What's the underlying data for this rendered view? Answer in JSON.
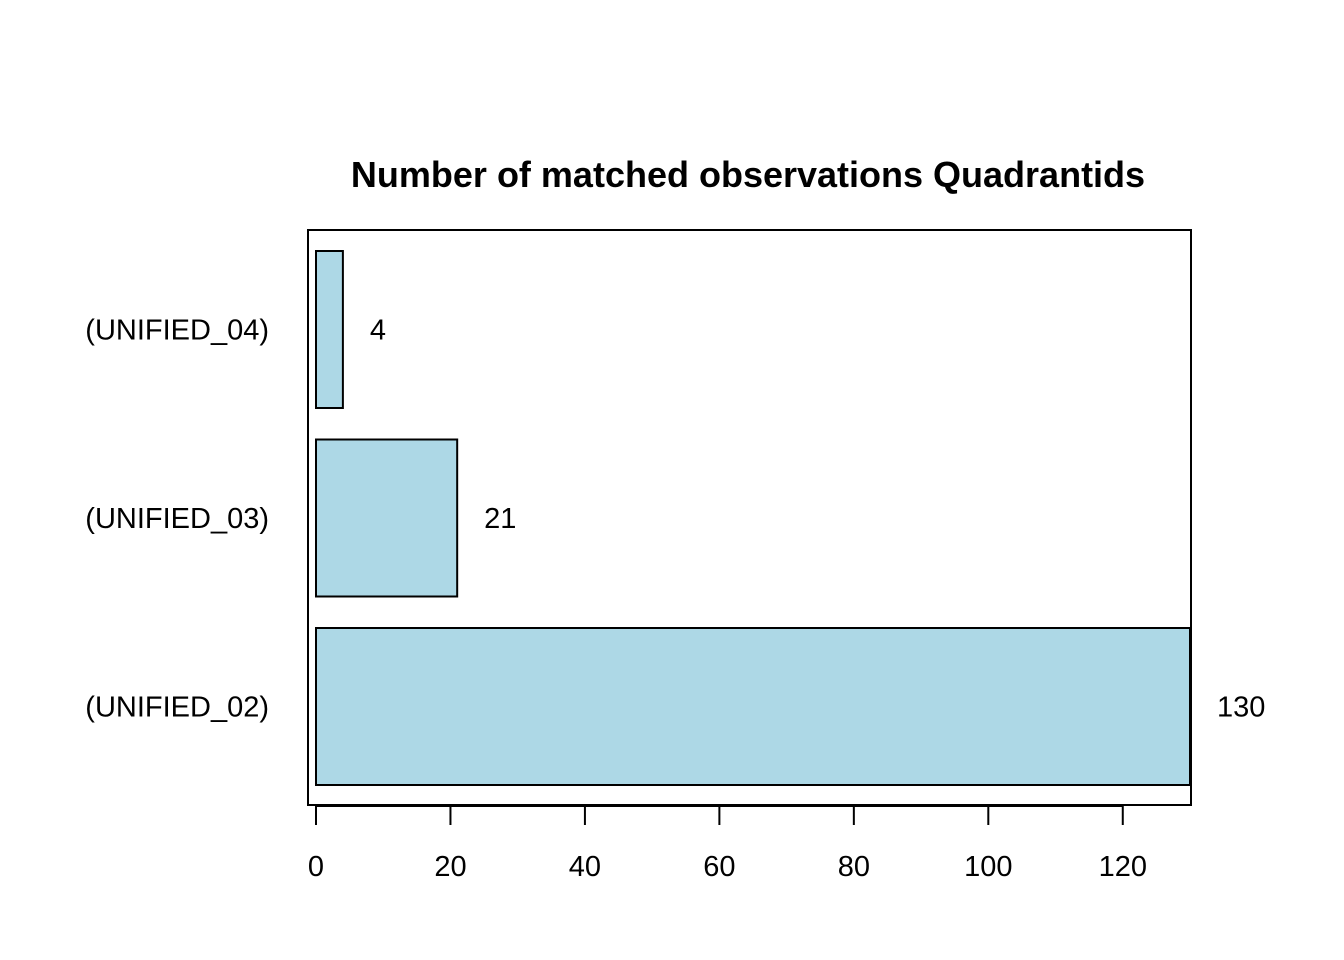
{
  "chart_data": {
    "type": "bar",
    "orientation": "horizontal",
    "title": "Number of matched observations Quadrantids",
    "xlabel": "",
    "ylabel": "",
    "categories": [
      "(UNIFIED_02)",
      "(UNIFIED_03)",
      "(UNIFIED_04)"
    ],
    "values": [
      130,
      21,
      4
    ],
    "value_labels": [
      "130",
      "21",
      "4"
    ],
    "xlim": [
      0,
      130
    ],
    "x_ticks": [
      0,
      20,
      40,
      60,
      80,
      100,
      120
    ],
    "x_tick_labels": [
      "0",
      "20",
      "40",
      "60",
      "80",
      "100",
      "120"
    ],
    "grid": false,
    "legend": "none",
    "bar_fill_color": "#add8e6",
    "bar_stroke_color": "#000000"
  }
}
